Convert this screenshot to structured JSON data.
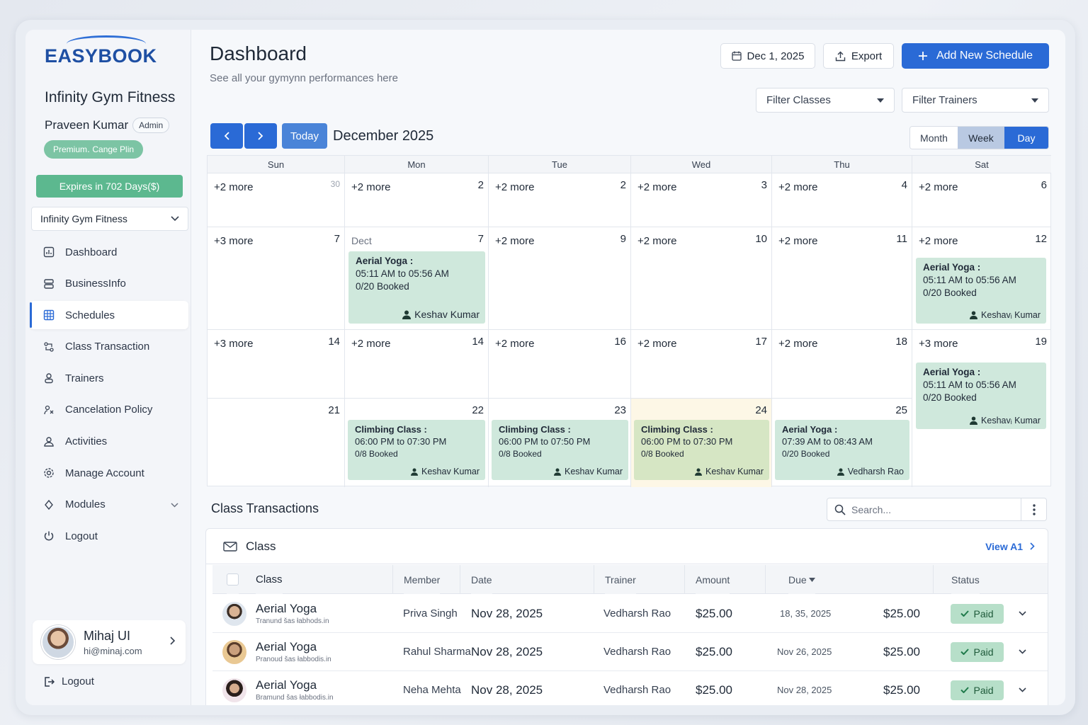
{
  "brand": {
    "logo": "EASYBOOK",
    "gym_name": "Infinity Gym Fitness",
    "user_name": "Praveen Kumar",
    "role": "Admin",
    "plan": "Premium․ Cange Plin",
    "expires": "Expires in 702 Days($)",
    "gym_select": "Infinity Gym Fitness"
  },
  "nav": [
    {
      "label": "Dashboard",
      "icon": "dashboard-icon"
    },
    {
      "label": "BusinessInfo",
      "icon": "business-icon"
    },
    {
      "label": "Schedules",
      "icon": "calendar-grid-icon",
      "active": true
    },
    {
      "label": "Class Transaction",
      "icon": "transaction-icon"
    },
    {
      "label": "Trainers",
      "icon": "trainer-icon"
    },
    {
      "label": "Cancelation Policy",
      "icon": "policy-icon"
    },
    {
      "label": "Activities",
      "icon": "activities-icon"
    },
    {
      "label": "Manage Account",
      "icon": "gear-icon"
    },
    {
      "label": "Modules",
      "icon": "modules-icon",
      "expandable": true
    },
    {
      "label": "Logout",
      "icon": "power-icon"
    }
  ],
  "user_card": {
    "name": "Mihaj UI",
    "email": "hi@minaj.com"
  },
  "footer_logout": "Logout",
  "header": {
    "title": "Dashboard",
    "subtitle": "See all your gymynn performances here",
    "date_btn": "Dec 1, 2025",
    "export_btn": "Export",
    "add_btn": "Add New Schedule",
    "filter_classes": "Filter Classes",
    "filter_trainers": "Filter Trainers"
  },
  "calendar": {
    "today_btn": "Today",
    "month_label": "December 2025",
    "views": [
      "Month",
      "Week",
      "Day"
    ],
    "days": [
      "Sun",
      "Mon",
      "Tue",
      "Wed",
      "Thu",
      "Sat"
    ],
    "weeks": [
      [
        {
          "more": "+2 more",
          "num": "30",
          "muted": true
        },
        {
          "more": "+2 more",
          "num": "2"
        },
        {
          "more": "+2 more",
          "num": "2"
        },
        {
          "more": "+2 more",
          "num": "3"
        },
        {
          "more": "+2 more",
          "num": "4"
        },
        {
          "more": "+2 more",
          "num": "6"
        }
      ],
      [
        {
          "more": "+3 more",
          "num": "7"
        },
        {
          "more": "Dect",
          "num": "7",
          "label_muted": true
        },
        {
          "more": "+2 more",
          "num": "9"
        },
        {
          "more": "+2 more",
          "num": "10"
        },
        {
          "more": "+2 more",
          "num": "11"
        },
        {
          "more": "+2 more",
          "num": "12"
        }
      ],
      [
        {
          "more": "+3 more",
          "num": "14"
        },
        {
          "more": "+2 more",
          "num": "14"
        },
        {
          "more": "+2 more",
          "num": "16"
        },
        {
          "more": "+2 more",
          "num": "17"
        },
        {
          "more": "+2 more",
          "num": "18"
        },
        {
          "more": "+3 more",
          "num": "19"
        }
      ],
      [
        {
          "more": "",
          "num": "21"
        },
        {
          "more": "",
          "num": "22"
        },
        {
          "more": "",
          "num": "23"
        },
        {
          "more": "",
          "num": "24",
          "today": true
        },
        {
          "more": "",
          "num": "25"
        },
        {
          "more": "",
          "num": ""
        }
      ]
    ],
    "events": {
      "mon_w2": {
        "title": "Aerial Yoga :",
        "time": "05:11 AM to 05:56 AM",
        "booked": "0/20 Booked",
        "trainer": "Keshav Kumar"
      },
      "sat_w2": {
        "title": "Aerial Yoga :",
        "time": "05:11 AM to 05:56 AM",
        "booked": "0/20 Booked",
        "trainer": "Keshavᵢ Kumar"
      },
      "sat_w3": {
        "title": "Aerial Yoga :",
        "time": "05:11 AM to 05:56 AM",
        "booked": "0/20 Booked",
        "trainer": "Keshavᵢ Kumar"
      },
      "mon_w4": {
        "title": "Climbing Class :",
        "time": "06:00 PM to 07:30 PM",
        "booked": "0/8 Booked",
        "trainer": "Keshav  Kumar"
      },
      "tue_w4": {
        "title": "Climbing Class :",
        "time": "06:00 PM to 07:50 PM",
        "booked": "0/8 Booked",
        "trainer": "Keshav  Kumar"
      },
      "wed_w4": {
        "title": "Climbing Class :",
        "time": "06:00 PM to 07:30 PM",
        "booked": "0/8 Booked",
        "trainer": "Keshav  Kumar"
      },
      "thu_w4": {
        "title": "Aerial Yoga :",
        "time": "07:39 AM to 08:43 AM",
        "booked": "0/20 Booked",
        "trainer": "Vedharsh Rao"
      }
    }
  },
  "transactions": {
    "section_title": "Class Transactions",
    "search_placeholder": "Search...",
    "panel_title": "Class",
    "view_all": "View A1",
    "columns": [
      "Class",
      "Member",
      "Date",
      "Trainer",
      "Amount",
      "Due",
      "Status"
    ],
    "rows": [
      {
        "class": "Aerial Yoga",
        "sub": "Tranund šas łabhods.in",
        "member": "Priva Singh",
        "date": "Nov 28, 2025",
        "trainer": "Vedharsh Rao",
        "amount": "$25.00",
        "due": "18, 35, 2025",
        "due_amount": "$25.00",
        "status": "Paid"
      },
      {
        "class": "Aerial Yoga",
        "sub": "Pranoud šas łabbodis.in",
        "member": "Rahul Sharma",
        "date": "Nov 28, 2025",
        "trainer": "Vedharsh Rao",
        "amount": "$25.00",
        "due": "Nov 26, 2025",
        "due_amount": "$25.00",
        "status": "Paid"
      },
      {
        "class": "Aerial Yoga",
        "sub": "Bramund šas łabbodis.in",
        "member": "Neha Mehta",
        "date": "Nov 28, 2025",
        "trainer": "Vedharsh Rao",
        "amount": "$25.00",
        "due": "Nov 28, 2025",
        "due_amount": "$25.00",
        "status": "Paid"
      }
    ]
  },
  "colors": {
    "primary": "#2a6ad6",
    "event": "#cfe8dc",
    "paid": "#b7dfc9",
    "expires": "#5cb88f"
  }
}
